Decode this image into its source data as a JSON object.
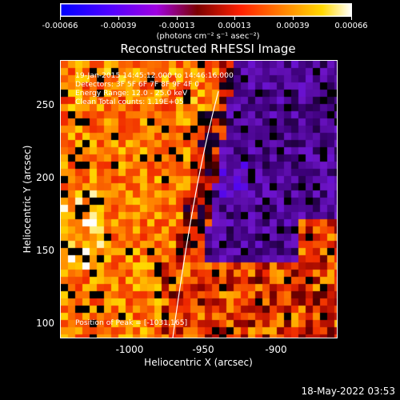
{
  "colorbar": {
    "labels": [
      "-0.00066",
      "-0.00039",
      "-0.00013",
      "0.00013",
      "0.00039",
      "0.00066"
    ],
    "units": "(photons cm⁻² s⁻¹ asec⁻²)"
  },
  "title": "Reconstructed RHESSI Image",
  "annotations": {
    "time": "19-Jan-2015 14:45:12.000 to 14:46:16.000",
    "detectors": "Detectors: 3F 5F 6F 7F 8F 9F 4F 0",
    "energy": "Energy Range: 12.0 - 25.0 keV",
    "clean": "Clean     Total counts: 1.19E+05",
    "peak": "Position of Peak = [-1031,165]"
  },
  "axes": {
    "xlabel": "Heliocentric X (arcsec)",
    "ylabel": "Heliocentric Y (arcsec)",
    "xticks": [
      "-1000",
      "-950",
      "-900"
    ],
    "yticks": [
      "100",
      "150",
      "200",
      "250"
    ]
  },
  "footer": {
    "date": "18-May-2022 03:53"
  },
  "colors": {
    "background": "#000000",
    "foreground": "#ffffff"
  }
}
